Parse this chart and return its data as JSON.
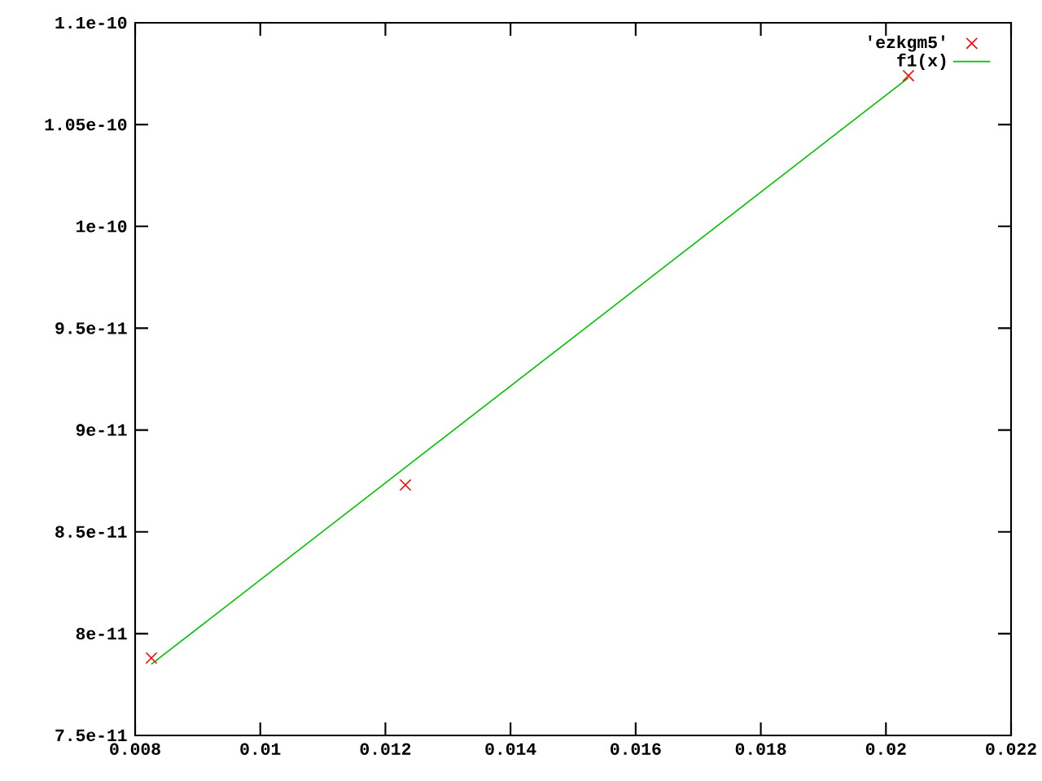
{
  "chart_data": {
    "type": "scatter",
    "xlim": [
      0.008,
      0.022
    ],
    "ylim": [
      7.5e-11,
      1.1e-10
    ],
    "xticks": [
      0.008,
      0.01,
      0.012,
      0.014,
      0.016,
      0.018,
      0.02,
      0.022
    ],
    "yticks": [
      {
        "value": 7.5e-11,
        "label": "7.5e-11"
      },
      {
        "value": 8e-11,
        "label": "8e-11"
      },
      {
        "value": 8.5e-11,
        "label": "8.5e-11"
      },
      {
        "value": 9e-11,
        "label": "9e-11"
      },
      {
        "value": 9.5e-11,
        "label": "9.5e-11"
      },
      {
        "value": 1e-10,
        "label": "1e-10"
      },
      {
        "value": 1.05e-10,
        "label": "1.05e-10"
      },
      {
        "value": 1.1e-10,
        "label": "1.1e-10"
      }
    ],
    "legend": "top right",
    "grid": false,
    "series": [
      {
        "name": "'ezkgm5'",
        "marker": "cross",
        "color": "#ff0000",
        "x": [
          0.00826,
          0.01232,
          0.02036
        ],
        "values": [
          7.88e-11,
          8.73e-11,
          1.074e-10
        ]
      },
      {
        "name": "f1(x)",
        "type": "line",
        "marker": "none",
        "line_style": "solid",
        "color": "#00c000",
        "x": [
          0.00826,
          0.02036
        ],
        "values": [
          7.85e-11,
          1.073e-10
        ]
      }
    ]
  }
}
